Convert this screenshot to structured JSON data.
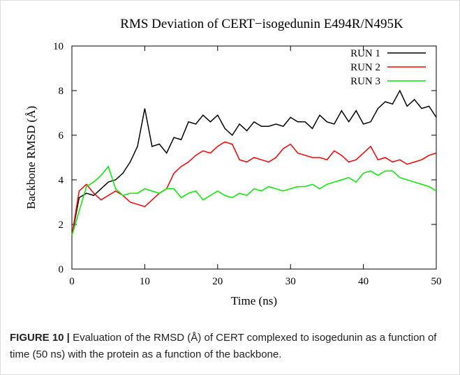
{
  "chart_data": {
    "type": "line",
    "title": "RMS Deviation of CERT−isogedunin E494R/N495K",
    "x_label": "Time (ns)",
    "y_label": "Backbone RMSD (Å)",
    "x": [
      0,
      1,
      2,
      3,
      4,
      5,
      6,
      7,
      8,
      9,
      10,
      11,
      12,
      13,
      14,
      15,
      16,
      17,
      18,
      19,
      20,
      21,
      22,
      23,
      24,
      25,
      26,
      27,
      28,
      29,
      30,
      31,
      32,
      33,
      34,
      35,
      36,
      37,
      38,
      39,
      40,
      41,
      42,
      43,
      44,
      45,
      46,
      47,
      48,
      49,
      50
    ],
    "series": [
      {
        "name": "RUN 1",
        "color": "#000000",
        "values": [
          1.5,
          3.2,
          3.4,
          3.3,
          3.6,
          3.9,
          4.0,
          4.3,
          4.8,
          5.5,
          7.2,
          5.5,
          5.6,
          5.2,
          5.9,
          5.8,
          6.6,
          6.5,
          6.9,
          6.6,
          6.9,
          6.3,
          6.0,
          6.5,
          6.2,
          6.6,
          6.4,
          6.4,
          6.5,
          6.4,
          6.8,
          6.6,
          6.6,
          6.3,
          6.9,
          6.6,
          6.5,
          7.1,
          6.6,
          7.1,
          6.5,
          6.6,
          7.2,
          7.5,
          7.4,
          8.0,
          7.3,
          7.6,
          7.2,
          7.3,
          6.8
        ]
      },
      {
        "name": "RUN 2",
        "color": "#ff0000",
        "values": [
          1.5,
          3.5,
          3.8,
          3.4,
          3.1,
          3.3,
          3.5,
          3.3,
          3.0,
          2.9,
          2.8,
          3.1,
          3.4,
          3.6,
          4.3,
          4.6,
          4.8,
          5.1,
          5.3,
          5.2,
          5.5,
          5.7,
          5.6,
          4.9,
          4.8,
          5.0,
          4.9,
          4.8,
          5.0,
          5.4,
          5.6,
          5.2,
          5.1,
          5.0,
          5.0,
          4.9,
          5.3,
          5.1,
          4.8,
          4.9,
          5.2,
          5.5,
          4.9,
          5.0,
          4.8,
          4.9,
          4.7,
          4.8,
          4.9,
          5.1,
          5.2
        ]
      },
      {
        "name": "RUN 3",
        "color": "#00ee00",
        "values": [
          1.5,
          2.6,
          3.7,
          3.9,
          4.2,
          4.6,
          3.6,
          3.3,
          3.4,
          3.4,
          3.6,
          3.5,
          3.4,
          3.6,
          3.6,
          3.2,
          3.4,
          3.5,
          3.1,
          3.3,
          3.5,
          3.3,
          3.2,
          3.4,
          3.3,
          3.6,
          3.5,
          3.7,
          3.6,
          3.5,
          3.6,
          3.7,
          3.7,
          3.8,
          3.6,
          3.8,
          3.9,
          4.0,
          4.1,
          3.9,
          4.3,
          4.4,
          4.2,
          4.4,
          4.4,
          4.1,
          4.0,
          3.9,
          3.8,
          3.7,
          3.5
        ]
      }
    ],
    "xlim": [
      0,
      50
    ],
    "xticks": [
      0,
      10,
      20,
      30,
      40,
      50
    ],
    "ylim": [
      0,
      10
    ],
    "yticks": [
      0,
      2,
      4,
      6,
      8,
      10
    ],
    "legend": "upper right"
  },
  "caption": {
    "label": "FIGURE 10 |",
    "text": "Evaluation of the RMSD (Å) of CERT complexed to isogedunin as a function of time (50 ns) with the protein as a function of the backbone."
  }
}
